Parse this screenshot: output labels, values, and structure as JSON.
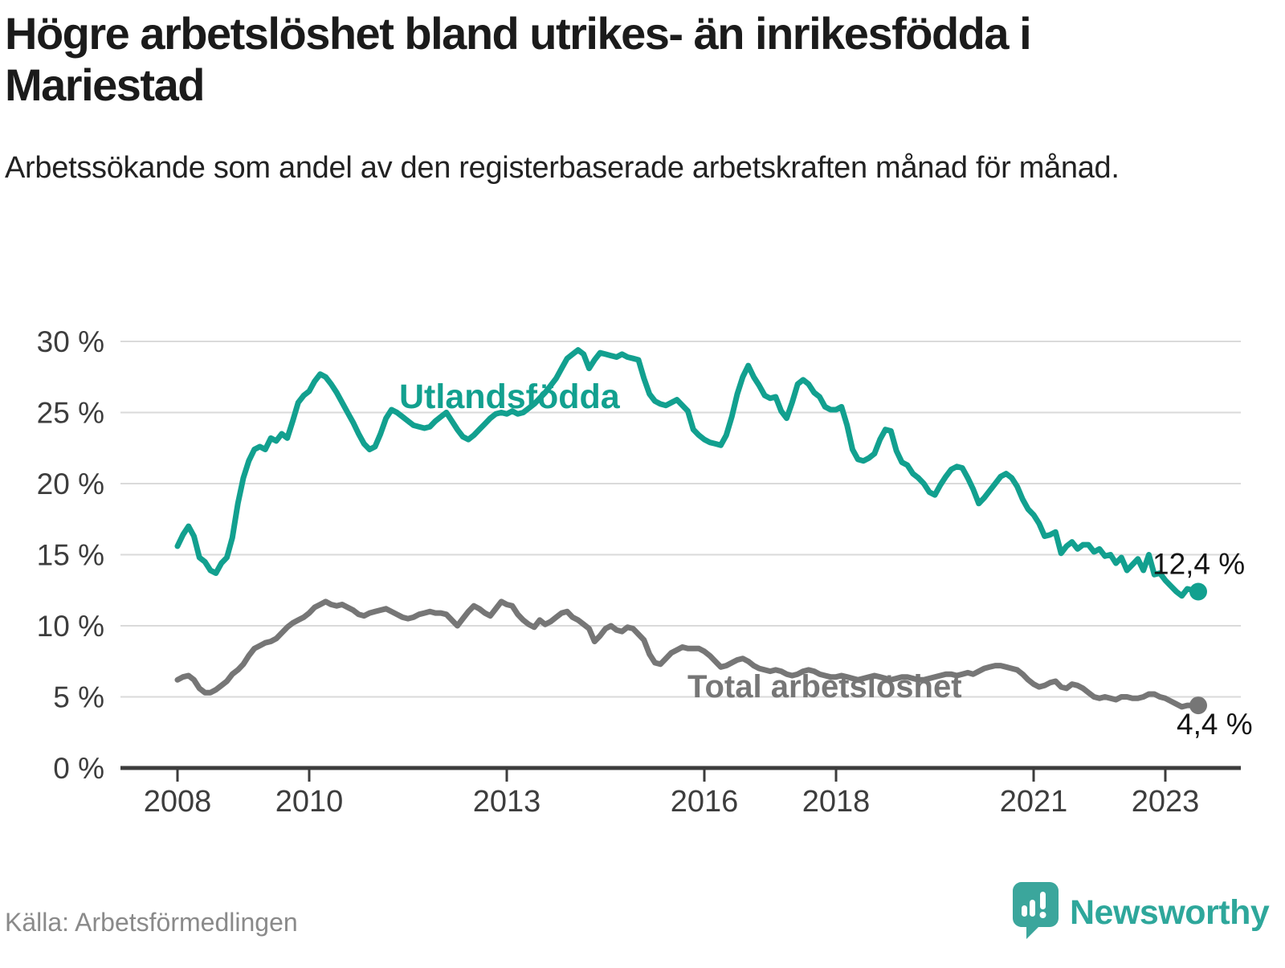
{
  "header": {
    "title": "Högre arbetslöshet bland utrikes- än inrikesfödda i Mariestad",
    "subtitle": "Arbetssökande som andel av den registerbaserade arbetskraften månad för månad."
  },
  "footer": {
    "source": "Källa: Arbetsförmedlingen",
    "brand_name": "Newsworthy",
    "brand_icon": "newsworthy-bars-exclamation-bubble"
  },
  "colors": {
    "accent_teal": "#12a08f",
    "series_gray": "#767676",
    "brand_teal": "#2ea79b",
    "gridline": "#dadada",
    "axis": "#3c3c3c",
    "axis_text": "#3d3d3d",
    "end_label_text": "#141414"
  },
  "chart_data": {
    "type": "line",
    "title": "Högre arbetslöshet bland utrikes- än inrikesfödda i Mariestad",
    "subtitle": "Arbetssökande som andel av den registerbaserade arbetskraften månad för månad.",
    "xlabel": "",
    "ylabel": "",
    "grid": "horizontal",
    "legend_position": "inline-labels",
    "frequency": "monthly",
    "x_start": "2008-01",
    "x_end": "2023-07",
    "x_ticks": [
      2008,
      2010,
      2013,
      2016,
      2018,
      2021,
      2023
    ],
    "y_tick_labels": [
      "30 %",
      "25 %",
      "20 %",
      "15 %",
      "10 %",
      "5 %",
      "0 %"
    ],
    "y_tick_values": [
      30,
      25,
      20,
      15,
      10,
      5,
      0
    ],
    "ylim": [
      0,
      31
    ],
    "series": [
      {
        "name": "Utlandsfödda",
        "color": "#12a08f",
        "end_label": "12,4 %",
        "end_value": 12.4,
        "values": [
          15.6,
          16.4,
          17.0,
          16.3,
          14.8,
          14.5,
          13.9,
          13.7,
          14.4,
          14.8,
          16.2,
          18.6,
          20.4,
          21.6,
          22.4,
          22.6,
          22.4,
          23.2,
          23.0,
          23.5,
          23.2,
          24.4,
          25.7,
          26.2,
          26.5,
          27.2,
          27.7,
          27.5,
          27.0,
          26.4,
          25.7,
          25.0,
          24.3,
          23.5,
          22.8,
          22.4,
          22.6,
          23.5,
          24.6,
          25.2,
          25.0,
          24.7,
          24.4,
          24.1,
          24.0,
          23.9,
          24.0,
          24.4,
          24.7,
          25.0,
          24.4,
          23.8,
          23.3,
          23.1,
          23.4,
          23.8,
          24.2,
          24.6,
          24.9,
          25.0,
          24.9,
          25.1,
          24.9,
          25.0,
          25.3,
          25.6,
          26.0,
          26.4,
          26.9,
          27.4,
          28.1,
          28.8,
          29.1,
          29.4,
          29.1,
          28.1,
          28.7,
          29.2,
          29.1,
          29.0,
          28.9,
          29.1,
          28.9,
          28.8,
          28.7,
          27.4,
          26.3,
          25.8,
          25.6,
          25.5,
          25.7,
          25.9,
          25.5,
          25.1,
          23.8,
          23.4,
          23.1,
          22.9,
          22.8,
          22.7,
          23.4,
          24.7,
          26.3,
          27.5,
          28.3,
          27.5,
          26.9,
          26.2,
          26.0,
          26.1,
          25.1,
          24.6,
          25.7,
          27.0,
          27.3,
          27.0,
          26.4,
          26.1,
          25.4,
          25.2,
          25.2,
          25.4,
          24.1,
          22.4,
          21.7,
          21.6,
          21.8,
          22.1,
          23.1,
          23.8,
          23.7,
          22.3,
          21.5,
          21.3,
          20.7,
          20.4,
          20.0,
          19.4,
          19.2,
          19.9,
          20.5,
          21.0,
          21.2,
          21.1,
          20.4,
          19.6,
          18.6,
          19.0,
          19.5,
          20.0,
          20.5,
          20.7,
          20.4,
          19.8,
          18.9,
          18.2,
          17.8,
          17.2,
          16.3,
          16.4,
          16.6,
          15.1,
          15.6,
          15.9,
          15.4,
          15.7,
          15.7,
          15.2,
          15.4,
          14.9,
          15.0,
          14.4,
          14.8,
          13.9,
          14.3,
          14.7,
          13.9,
          15.0,
          13.6,
          13.7,
          13.2,
          12.8,
          12.4,
          12.1,
          12.6,
          12.5,
          12.4
        ]
      },
      {
        "name": "Total arbetslöshet",
        "color": "#767676",
        "end_label": "4,4 %",
        "end_value": 4.4,
        "values": [
          6.2,
          6.4,
          6.5,
          6.2,
          5.6,
          5.3,
          5.3,
          5.5,
          5.8,
          6.1,
          6.6,
          6.9,
          7.3,
          7.9,
          8.4,
          8.6,
          8.8,
          8.9,
          9.1,
          9.5,
          9.9,
          10.2,
          10.4,
          10.6,
          10.9,
          11.3,
          11.5,
          11.7,
          11.5,
          11.4,
          11.5,
          11.3,
          11.1,
          10.8,
          10.7,
          10.9,
          11.0,
          11.1,
          11.2,
          11.0,
          10.8,
          10.6,
          10.5,
          10.6,
          10.8,
          10.9,
          11.0,
          10.9,
          10.9,
          10.8,
          10.4,
          10.0,
          10.5,
          11.0,
          11.4,
          11.2,
          10.9,
          10.7,
          11.2,
          11.7,
          11.5,
          11.4,
          10.8,
          10.4,
          10.1,
          9.9,
          10.4,
          10.1,
          10.3,
          10.6,
          10.9,
          11.0,
          10.6,
          10.4,
          10.1,
          9.8,
          8.9,
          9.3,
          9.8,
          10.0,
          9.7,
          9.6,
          9.9,
          9.8,
          9.4,
          9.0,
          8.0,
          7.4,
          7.3,
          7.7,
          8.1,
          8.3,
          8.5,
          8.4,
          8.4,
          8.4,
          8.2,
          7.9,
          7.5,
          7.1,
          7.2,
          7.4,
          7.6,
          7.7,
          7.5,
          7.2,
          7.0,
          6.9,
          6.8,
          6.9,
          6.8,
          6.6,
          6.5,
          6.6,
          6.8,
          6.9,
          6.8,
          6.6,
          6.5,
          6.4,
          6.4,
          6.5,
          6.4,
          6.3,
          6.2,
          6.3,
          6.4,
          6.5,
          6.4,
          6.3,
          6.2,
          6.3,
          6.4,
          6.4,
          6.3,
          6.2,
          6.2,
          6.3,
          6.4,
          6.5,
          6.6,
          6.6,
          6.5,
          6.6,
          6.7,
          6.6,
          6.8,
          7.0,
          7.1,
          7.2,
          7.2,
          7.1,
          7.0,
          6.9,
          6.6,
          6.2,
          5.9,
          5.7,
          5.8,
          6.0,
          6.1,
          5.7,
          5.6,
          5.9,
          5.8,
          5.6,
          5.3,
          5.0,
          4.9,
          5.0,
          4.9,
          4.8,
          5.0,
          5.0,
          4.9,
          4.9,
          5.0,
          5.2,
          5.2,
          5.0,
          4.9,
          4.7,
          4.5,
          4.3,
          4.4,
          4.4,
          4.4
        ]
      }
    ]
  }
}
